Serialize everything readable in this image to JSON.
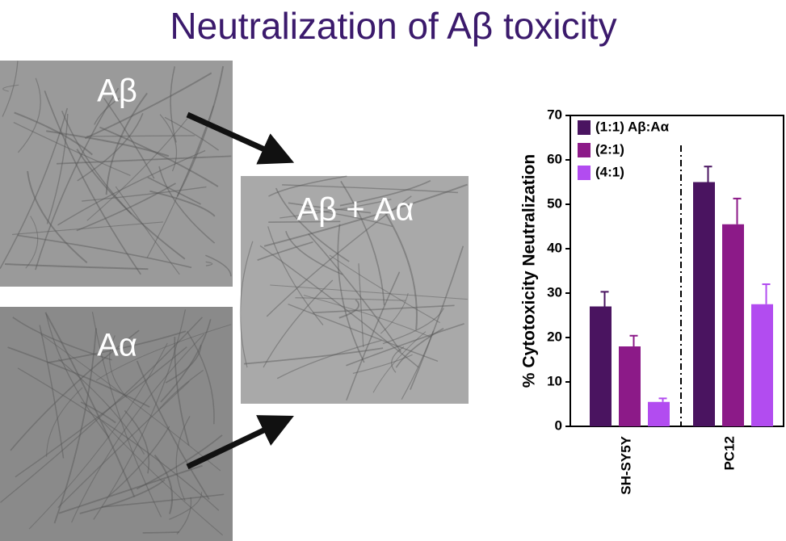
{
  "title": "Neutralization of Aβ toxicity",
  "panels": [
    {
      "label": "Aβ"
    },
    {
      "label": "Aα"
    },
    {
      "label": "Aβ + Aα"
    }
  ],
  "chart_data": {
    "type": "bar",
    "y_label": "% Cytotoxicity Neutralization",
    "categories": [
      "SH-SY5Y",
      "PC12"
    ],
    "series": [
      {
        "name": "(1:1) Aβ:Aα",
        "color": "#4a1460",
        "values": [
          27,
          55
        ],
        "errors": [
          3.3,
          3.5
        ]
      },
      {
        "name": "(2:1)",
        "color": "#8c1a88",
        "values": [
          18,
          45.5
        ],
        "errors": [
          2.4,
          5.8
        ]
      },
      {
        "name": "(4:1)",
        "color": "#b24cf0",
        "values": [
          5.5,
          27.5
        ],
        "errors": [
          0.8,
          4.5
        ]
      }
    ],
    "ylim": [
      0,
      70
    ],
    "yticks": [
      0,
      10,
      20,
      30,
      40,
      50,
      60,
      70
    ],
    "legend": "upper left"
  }
}
